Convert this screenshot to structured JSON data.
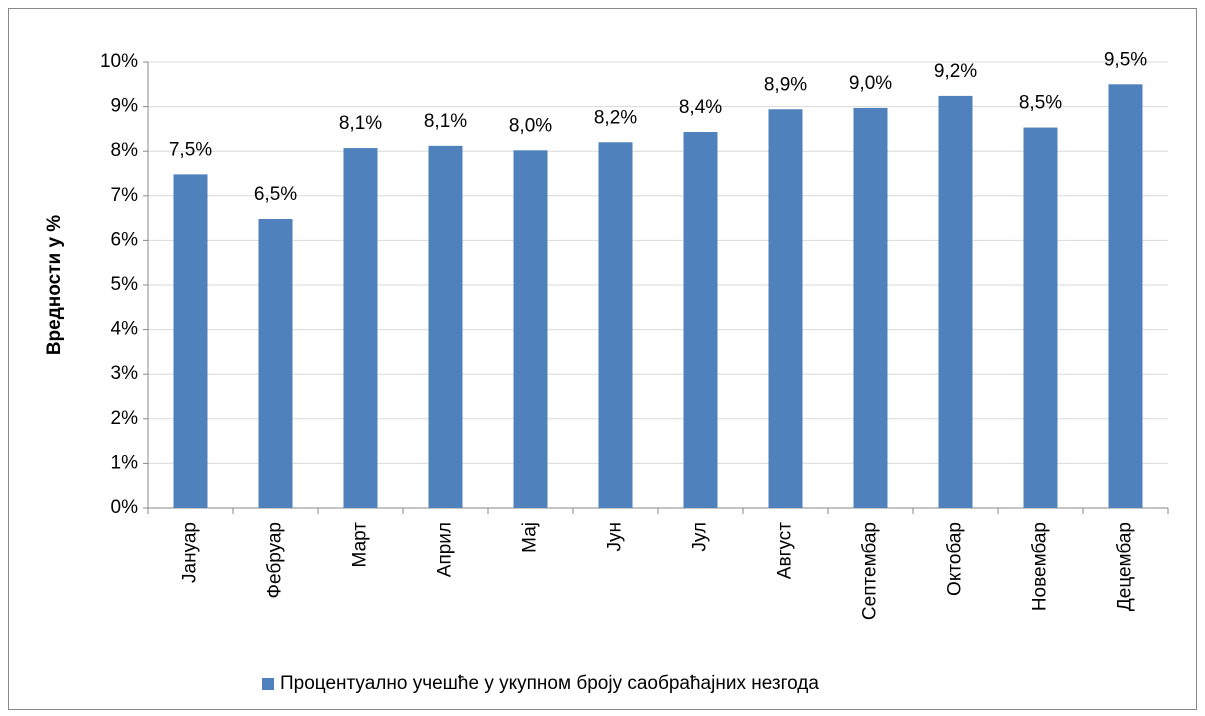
{
  "chart_data": {
    "type": "bar",
    "y_label": "Вредности у %",
    "categories": [
      "Јануар",
      "Фебруар",
      "Март",
      "Април",
      "Мај",
      "Јун",
      "Јул",
      "Август",
      "Септембар",
      "Октобар",
      "Новембар",
      "Децембар"
    ],
    "series": [
      {
        "name": "Процентуално учешће у укупном броју саобраћајних незгода",
        "color": "#4f81bd",
        "values": [
          7.48,
          6.48,
          8.07,
          8.12,
          8.02,
          8.2,
          8.43,
          8.94,
          8.97,
          9.24,
          8.53,
          9.5
        ],
        "value_labels": [
          "7,5%",
          "6,5%",
          "8,1%",
          "8,1%",
          "8,0%",
          "8,2%",
          "8,4%",
          "8,9%",
          "9,0%",
          "9,2%",
          "8,5%",
          "9,5%"
        ]
      }
    ],
    "ylim": [
      0,
      10
    ],
    "yticks": [
      {
        "value": 0,
        "label": "0%"
      },
      {
        "value": 1,
        "label": "1%"
      },
      {
        "value": 2,
        "label": "2%"
      },
      {
        "value": 3,
        "label": "3%"
      },
      {
        "value": 4,
        "label": "4%"
      },
      {
        "value": 5,
        "label": "5%"
      },
      {
        "value": 6,
        "label": "6%"
      },
      {
        "value": 7,
        "label": "7%"
      },
      {
        "value": 8,
        "label": "8%"
      },
      {
        "value": 9,
        "label": "9%"
      },
      {
        "value": 10,
        "label": "10%"
      }
    ],
    "grid": true,
    "legend": "bottom"
  }
}
